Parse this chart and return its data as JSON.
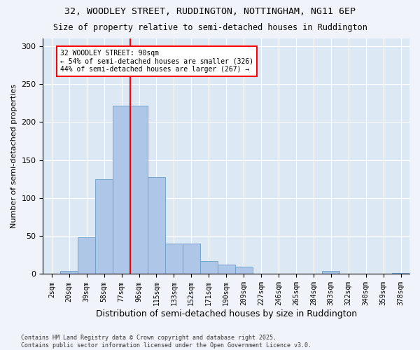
{
  "title1": "32, WOODLEY STREET, RUDDINGTON, NOTTINGHAM, NG11 6EP",
  "title2": "Size of property relative to semi-detached houses in Ruddington",
  "xlabel": "Distribution of semi-detached houses by size in Ruddington",
  "ylabel": "Number of semi-detached properties",
  "categories": [
    "2sqm",
    "20sqm",
    "39sqm",
    "58sqm",
    "77sqm",
    "96sqm",
    "115sqm",
    "133sqm",
    "152sqm",
    "171sqm",
    "190sqm",
    "209sqm",
    "227sqm",
    "246sqm",
    "265sqm",
    "284sqm",
    "303sqm",
    "322sqm",
    "340sqm",
    "359sqm",
    "378sqm"
  ],
  "values": [
    0,
    4,
    48,
    125,
    222,
    222,
    128,
    40,
    40,
    17,
    12,
    10,
    0,
    0,
    0,
    0,
    4,
    0,
    0,
    0,
    1
  ],
  "bar_color": "#aec6e8",
  "bar_edge_color": "#6a9ec8",
  "vline_position": 5,
  "vline_color": "red",
  "annotation_text": "32 WOODLEY STREET: 90sqm\n← 54% of semi-detached houses are smaller (326)\n44% of semi-detached houses are larger (267) →",
  "box_facecolor": "white",
  "box_edgecolor": "red",
  "footnote": "Contains HM Land Registry data © Crown copyright and database right 2025.\nContains public sector information licensed under the Open Government Licence v3.0.",
  "plot_bg_color": "#dde8f5",
  "fig_bg_color": "#f0f4fa",
  "ylim": [
    0,
    310
  ],
  "yticks": [
    0,
    50,
    100,
    150,
    200,
    250,
    300
  ]
}
